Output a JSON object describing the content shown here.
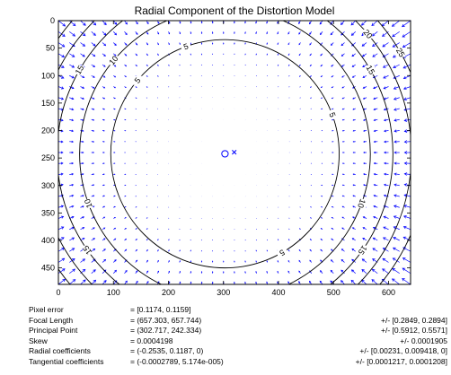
{
  "chart_data": {
    "type": "quiver+contour",
    "title": "Radial Component of the Distortion Model",
    "xlim": [
      0,
      640
    ],
    "ylim": [
      0,
      480
    ],
    "y_reversed": true,
    "x_ticks": [
      0,
      100,
      200,
      300,
      400,
      500,
      600
    ],
    "y_ticks": [
      0,
      50,
      100,
      150,
      200,
      250,
      300,
      350,
      400,
      450
    ],
    "contour_levels": [
      5,
      10,
      15,
      20,
      25
    ],
    "principal_point": [
      302.717,
      242.334
    ],
    "image_center": [
      319.5,
      239.5
    ],
    "principal_point_marker": "circle",
    "image_center_marker": "x",
    "colors": {
      "vectors": "#0000ff",
      "contours": "#000000",
      "markers": "#0000ff",
      "axes": "#000000"
    },
    "distortion": {
      "focal_length": [
        657.303,
        657.744
      ],
      "k1": -0.2535,
      "k2": 0.1187,
      "k3": 0
    }
  },
  "stats": [
    {
      "label": "Pixel error",
      "value": "= [0.1174, 0.1159]",
      "error": ""
    },
    {
      "label": "Focal Length",
      "value": "= (657.303, 657.744)",
      "error": "+/- [0.2849, 0.2894]"
    },
    {
      "label": "Principal Point",
      "value": "= (302.717, 242.334)",
      "error": "+/- [0.5912, 0.5571]"
    },
    {
      "label": "Skew",
      "value": "= 0.0004198",
      "error": "+/- 0.0001905"
    },
    {
      "label": "Radial coefficients",
      "value": "= (-0.2535, 0.1187, 0)",
      "error": "+/- [0.00231, 0.009418, 0]"
    },
    {
      "label": "Tangential coefficients",
      "value": "= (-0.0002789, 5.174e-005)",
      "error": "+/- [0.0001217, 0.0001208]"
    }
  ]
}
